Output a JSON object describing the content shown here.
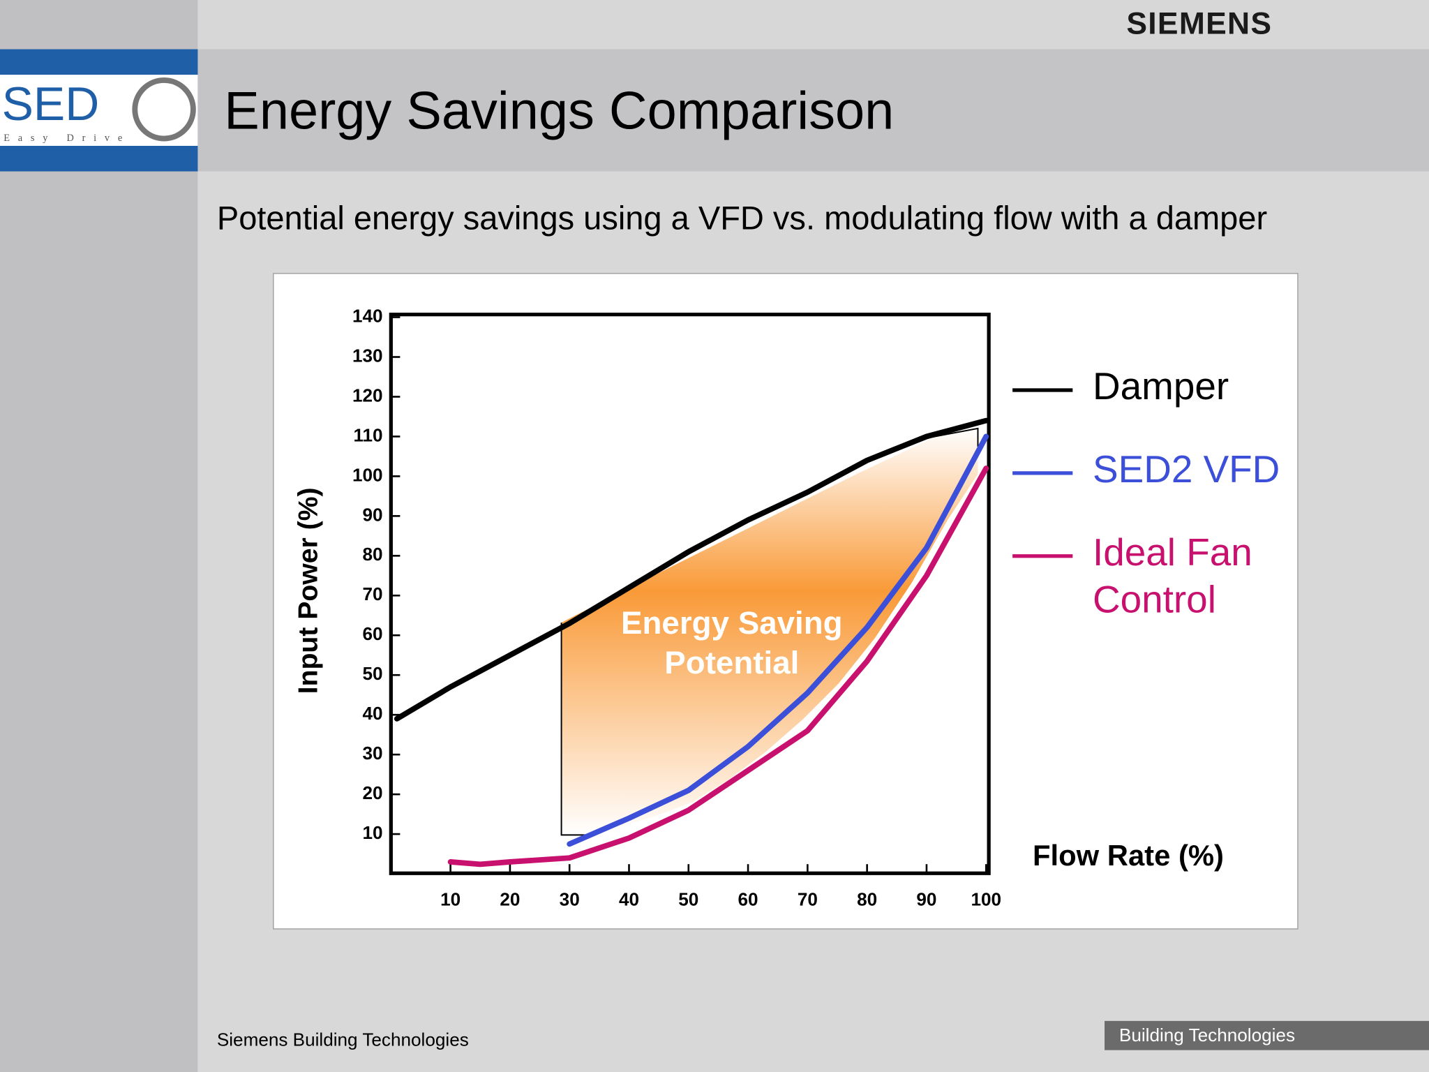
{
  "header": {
    "brand": "SIEMENS",
    "logo_text": "SED",
    "logo_subtext": "Easy Drive",
    "title": "Energy Savings Comparison"
  },
  "subtitle": "Potential energy savings using a VFD vs. modulating flow with a damper",
  "footer": {
    "left": "Siemens Building Technologies",
    "right": "Building Technologies"
  },
  "chart_data": {
    "type": "line",
    "x_label": "Flow Rate (%)",
    "y_label": "Input Power (%)",
    "annotation": "Energy Saving Potential",
    "xlim": [
      0,
      100
    ],
    "xticks": [
      10,
      20,
      30,
      40,
      50,
      60,
      70,
      80,
      90,
      100
    ],
    "ylim": [
      0,
      140
    ],
    "yticks": [
      10,
      20,
      30,
      40,
      50,
      60,
      70,
      80,
      90,
      100,
      110,
      120,
      130,
      140
    ],
    "series": [
      {
        "name": "Damper",
        "color": "#000000",
        "x": [
          1,
          10,
          20,
          30,
          40,
          50,
          60,
          70,
          80,
          90,
          100
        ],
        "values": [
          39,
          47,
          55,
          63,
          72,
          81,
          89,
          96,
          104,
          110,
          114
        ]
      },
      {
        "name": "SED2 VFD",
        "color": "#3b4fd8",
        "x": [
          30,
          40,
          50,
          60,
          70,
          80,
          90,
          100
        ],
        "values": [
          7.5,
          14,
          21,
          32,
          45.5,
          62,
          82,
          110
        ]
      },
      {
        "name": "Ideal Fan Control",
        "color": "#c8106e",
        "x": [
          10,
          15,
          20,
          30,
          40,
          50,
          60,
          70,
          80,
          90,
          100
        ],
        "values": [
          3,
          2.4,
          3,
          4,
          9,
          16,
          26,
          36,
          53.5,
          75,
          102
        ]
      }
    ]
  }
}
